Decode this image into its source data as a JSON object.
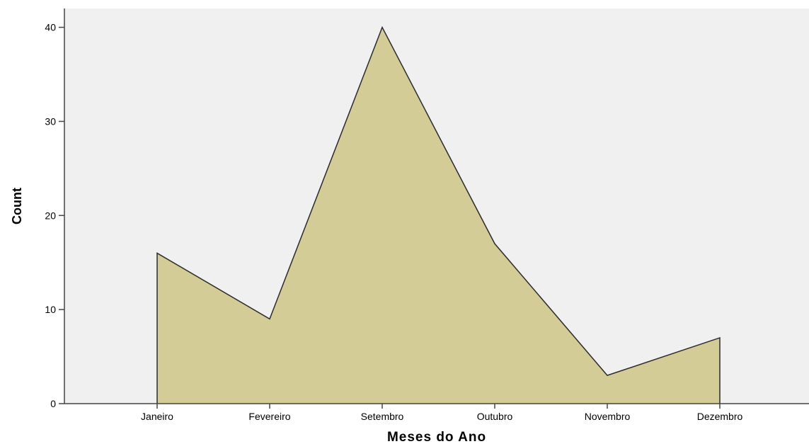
{
  "chart_data": {
    "type": "area",
    "categories": [
      "Janeiro",
      "Fevereiro",
      "Setembro",
      "Outubro",
      "Novembro",
      "Dezembro"
    ],
    "values": [
      16,
      9,
      40,
      17,
      3,
      7
    ],
    "xlabel": "Meses do Ano",
    "ylabel": "Count",
    "ylim": [
      0,
      42
    ],
    "yticks": [
      0,
      10,
      20,
      30,
      40
    ],
    "grid": false,
    "colors": {
      "fill": "#d3cc97",
      "line": "#2b2b2b",
      "plot_background": "#f0f0f0",
      "axis": "#444444"
    }
  }
}
